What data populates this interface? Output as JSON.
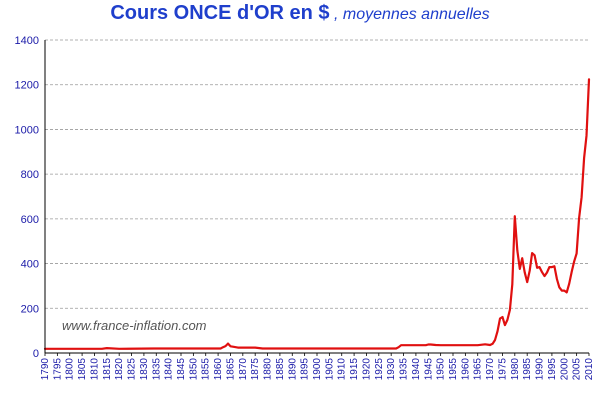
{
  "title": {
    "main": "Cours ONCE d'OR en $",
    "sub": " , moyennes annuelles"
  },
  "colors": {
    "title": "#1f3fcc",
    "line": "#e01010",
    "tick_text": "#1a1aa8",
    "grid": "#999999",
    "watermark": "#555555"
  },
  "chart_data": {
    "type": "line",
    "title": "Cours ONCE d'OR en $",
    "subtitle": ", moyennes annuelles",
    "xlabel": "",
    "ylabel": "",
    "xlim": [
      1790,
      2010
    ],
    "ylim": [
      0,
      1400
    ],
    "y_ticks": [
      0,
      200,
      400,
      600,
      800,
      1000,
      1200,
      1400
    ],
    "x_ticks": [
      1790,
      1795,
      1800,
      1805,
      1810,
      1815,
      1820,
      1825,
      1830,
      1835,
      1840,
      1845,
      1850,
      1855,
      1860,
      1865,
      1870,
      1875,
      1880,
      1885,
      1890,
      1895,
      1900,
      1905,
      1910,
      1915,
      1920,
      1925,
      1930,
      1935,
      1940,
      1945,
      1950,
      1955,
      1960,
      1965,
      1970,
      1975,
      1980,
      1985,
      1990,
      1995,
      2000,
      2005,
      2010
    ],
    "grid": "horizontal dashed",
    "annotation": "www.france-inflation.com",
    "series": [
      {
        "x": [
          1790,
          1800,
          1810,
          1813,
          1815,
          1820,
          1834,
          1840,
          1850,
          1860,
          1861,
          1862,
          1863,
          1864,
          1865,
          1866,
          1868,
          1870,
          1875,
          1878,
          1880,
          1900,
          1920,
          1932,
          1933,
          1934,
          1935,
          1940,
          1944,
          1945,
          1946,
          1948,
          1950,
          1955,
          1960,
          1965,
          1968,
          1970,
          1971,
          1972,
          1973,
          1974,
          1975,
          1976,
          1977,
          1978,
          1979,
          1980,
          1981,
          1982,
          1983,
          1984,
          1985,
          1986,
          1987,
          1988,
          1989,
          1990,
          1991,
          1992,
          1993,
          1994,
          1995,
          1996,
          1997,
          1998,
          1999,
          2000,
          2001,
          2002,
          2003,
          2004,
          2005,
          2006,
          2007,
          2008,
          2009,
          2010
        ],
        "y": [
          19,
          19,
          19,
          19,
          22,
          19,
          20,
          20,
          20,
          20,
          20,
          26,
          31,
          42,
          30,
          28,
          24,
          24,
          24,
          20,
          20,
          20,
          20,
          20,
          26,
          35,
          35,
          35,
          35,
          38,
          38,
          36,
          35,
          35,
          35,
          35,
          39,
          36,
          41,
          58,
          97,
          154,
          161,
          125,
          148,
          193,
          307,
          612,
          460,
          376,
          424,
          361,
          317,
          368,
          447,
          437,
          381,
          384,
          362,
          344,
          360,
          384,
          384,
          388,
          331,
          294,
          279,
          279,
          271,
          310,
          363,
          410,
          445,
          604,
          697,
          872,
          972,
          1224
        ]
      }
    ]
  }
}
